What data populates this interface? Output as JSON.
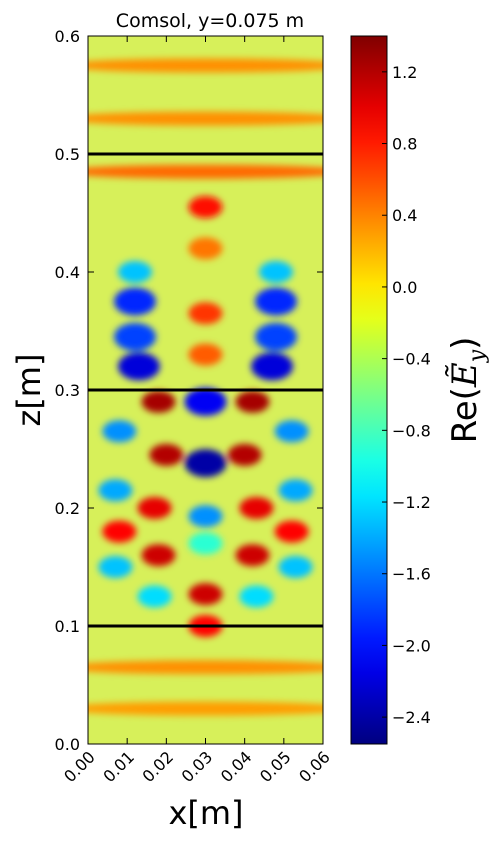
{
  "chart_data": {
    "type": "heatmap",
    "title": "Comsol, y=0.075 m",
    "xlabel": "x[m]",
    "ylabel": "z[m]",
    "xlim": [
      0.0,
      0.06
    ],
    "ylim": [
      0.0,
      0.6
    ],
    "xticks": [
      "0.00",
      "0.01",
      "0.02",
      "0.03",
      "0.04",
      "0.05",
      "0.06"
    ],
    "xtick_values": [
      0.0,
      0.01,
      0.02,
      0.03,
      0.04,
      0.05,
      0.06
    ],
    "yticks": [
      "0.0",
      "0.1",
      "0.2",
      "0.3",
      "0.4",
      "0.5",
      "0.6"
    ],
    "ytick_values": [
      0.0,
      0.1,
      0.2,
      0.3,
      0.4,
      0.5,
      0.6
    ],
    "boundary_lines_z": [
      0.1,
      0.3,
      0.5
    ],
    "colorbar": {
      "label_prefix": "Re(",
      "label_symbol": "Ẽ",
      "label_sub": "y",
      "label_suffix": ")",
      "colormap": "jet",
      "vmin": -2.55,
      "vmax": 1.4,
      "ticks": [
        "1.2",
        "0.8",
        "0.4",
        "0.0",
        "−0.4",
        "−0.8",
        "−1.2",
        "−1.6",
        "−2.0",
        "−2.4"
      ],
      "tick_values": [
        1.2,
        0.8,
        0.4,
        0.0,
        -0.4,
        -0.8,
        -1.2,
        -1.6,
        -2.0,
        -2.4
      ]
    },
    "features": [
      {
        "x": 0.03,
        "z": 0.455,
        "value": 0.85
      },
      {
        "x": 0.03,
        "z": 0.365,
        "value": 0.7
      },
      {
        "x": 0.03,
        "z": 0.33,
        "value": 0.55
      },
      {
        "x": 0.03,
        "z": 0.42,
        "value": 0.45
      },
      {
        "x": 0.013,
        "z": 0.32,
        "value": -2.2
      },
      {
        "x": 0.047,
        "z": 0.32,
        "value": -2.2
      },
      {
        "x": 0.012,
        "z": 0.375,
        "value": -1.9
      },
      {
        "x": 0.048,
        "z": 0.375,
        "value": -1.9
      },
      {
        "x": 0.012,
        "z": 0.345,
        "value": -1.8
      },
      {
        "x": 0.048,
        "z": 0.345,
        "value": -1.8
      },
      {
        "x": 0.012,
        "z": 0.4,
        "value": -1.3
      },
      {
        "x": 0.048,
        "z": 0.4,
        "value": -1.3
      },
      {
        "x": 0.018,
        "z": 0.29,
        "value": 1.25
      },
      {
        "x": 0.042,
        "z": 0.29,
        "value": 1.25
      },
      {
        "x": 0.03,
        "z": 0.29,
        "value": -2.1
      },
      {
        "x": 0.02,
        "z": 0.245,
        "value": 1.2
      },
      {
        "x": 0.04,
        "z": 0.245,
        "value": 1.2
      },
      {
        "x": 0.03,
        "z": 0.238,
        "value": -2.4
      },
      {
        "x": 0.008,
        "z": 0.265,
        "value": -1.5
      },
      {
        "x": 0.052,
        "z": 0.265,
        "value": -1.5
      },
      {
        "x": 0.007,
        "z": 0.215,
        "value": -1.4
      },
      {
        "x": 0.053,
        "z": 0.215,
        "value": -1.4
      },
      {
        "x": 0.017,
        "z": 0.2,
        "value": 1.0
      },
      {
        "x": 0.043,
        "z": 0.2,
        "value": 1.0
      },
      {
        "x": 0.03,
        "z": 0.193,
        "value": -1.5
      },
      {
        "x": 0.007,
        "z": 0.15,
        "value": -1.3
      },
      {
        "x": 0.053,
        "z": 0.15,
        "value": -1.3
      },
      {
        "x": 0.018,
        "z": 0.16,
        "value": 1.1
      },
      {
        "x": 0.042,
        "z": 0.16,
        "value": 1.1
      },
      {
        "x": 0.03,
        "z": 0.17,
        "value": -0.9
      },
      {
        "x": 0.017,
        "z": 0.125,
        "value": -1.2
      },
      {
        "x": 0.043,
        "z": 0.125,
        "value": -1.2
      },
      {
        "x": 0.03,
        "z": 0.127,
        "value": 1.1
      },
      {
        "x": 0.03,
        "z": 0.1,
        "value": 0.9
      },
      {
        "x": 0.008,
        "z": 0.18,
        "value": 0.9
      },
      {
        "x": 0.052,
        "z": 0.18,
        "value": 0.9
      }
    ],
    "bands": [
      {
        "z": 0.485,
        "value": 0.5
      },
      {
        "z": 0.53,
        "value": 0.35
      },
      {
        "z": 0.575,
        "value": 0.35
      },
      {
        "z": 0.065,
        "value": 0.35
      },
      {
        "z": 0.03,
        "value": 0.3
      }
    ]
  }
}
